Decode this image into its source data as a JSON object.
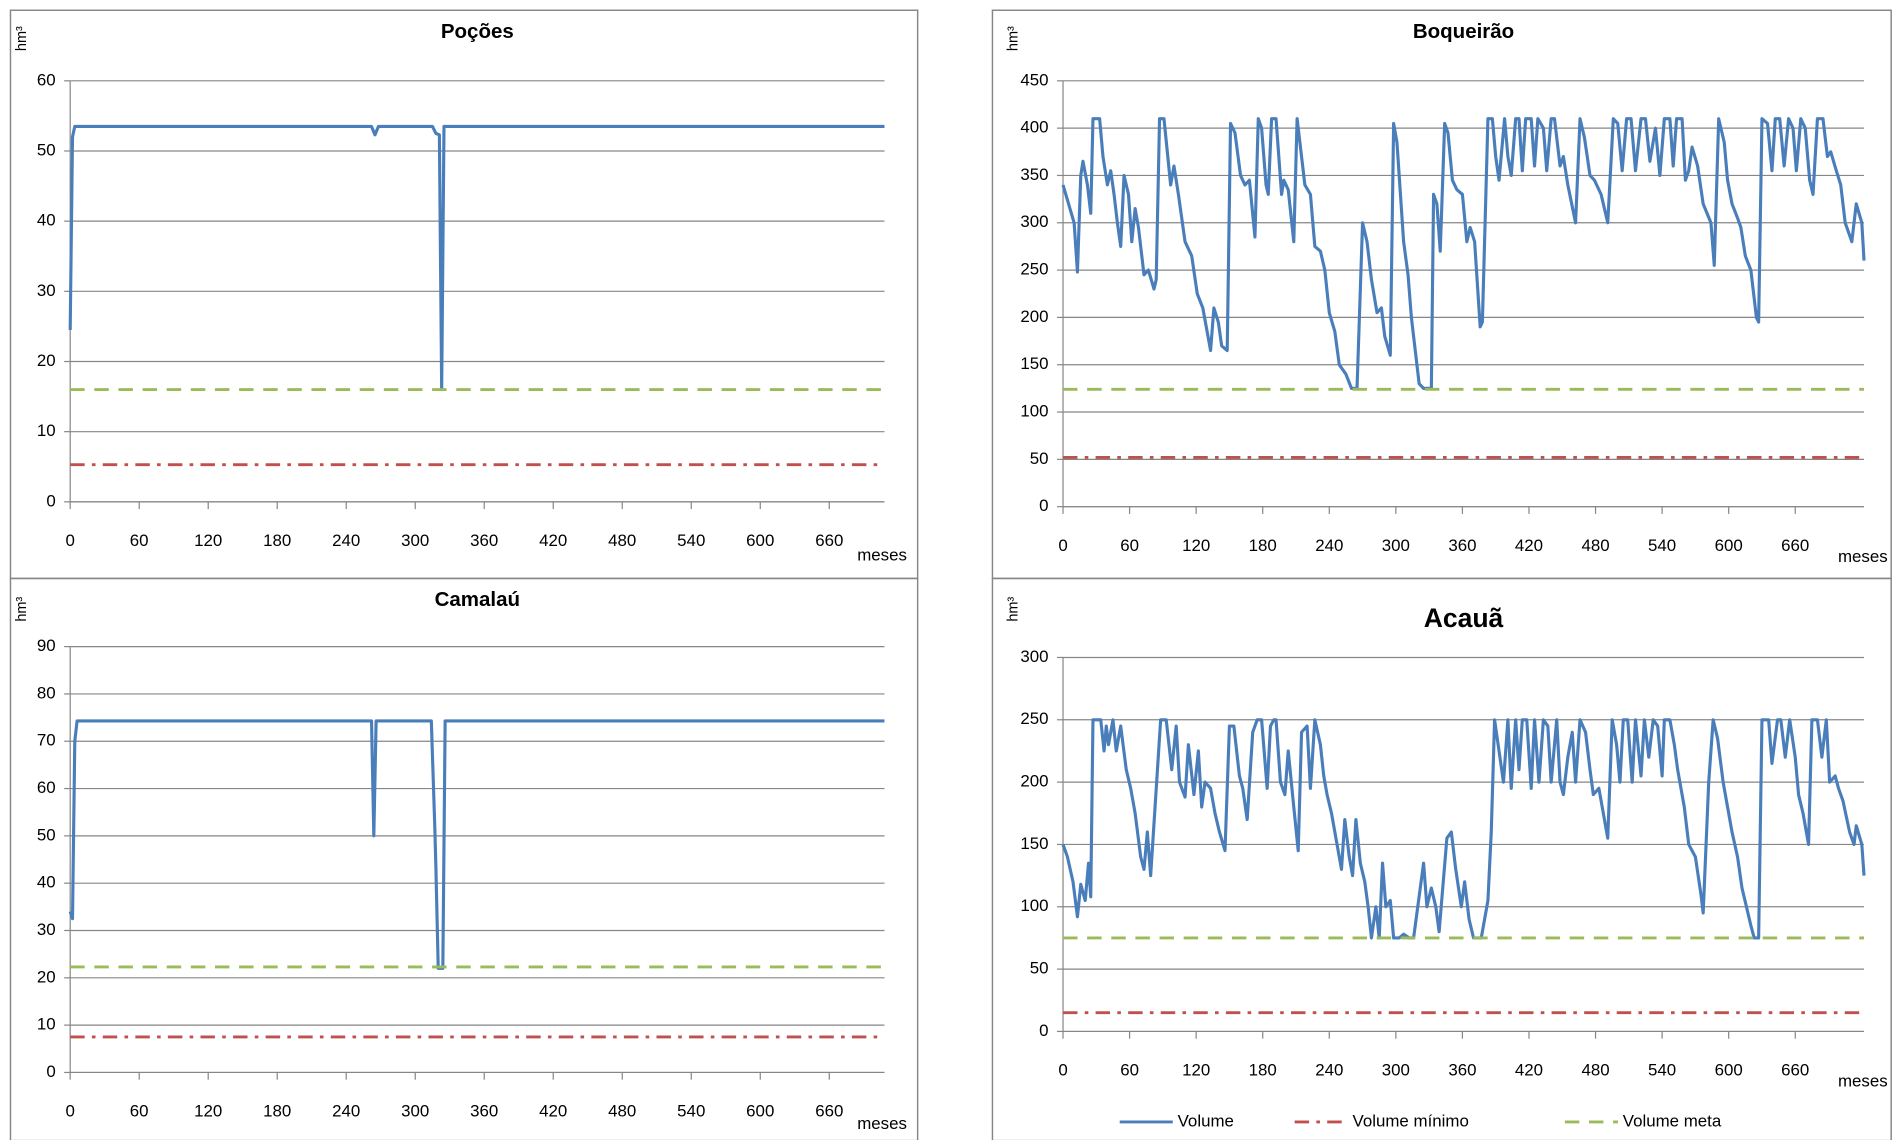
{
  "chart_data": [
    {
      "type": "line",
      "title": "Poções",
      "x_label": "meses",
      "y_label": "hm³",
      "xlim": [
        0,
        708
      ],
      "xticks": [
        0,
        60,
        120,
        180,
        240,
        300,
        360,
        420,
        480,
        540,
        600,
        660
      ],
      "ylim": [
        0,
        60
      ],
      "yticks": [
        0,
        10,
        20,
        30,
        40,
        50,
        60
      ],
      "grid": true,
      "series": [
        {
          "color": "#4a7ebb",
          "dash": "solid",
          "x": [
            0,
            2,
            4,
            262,
            265,
            268,
            315,
            318,
            321,
            323,
            325,
            708
          ],
          "values": [
            24.5,
            52,
            53.5,
            53.5,
            52.3,
            53.5,
            53.5,
            52.5,
            52.3,
            16,
            53.5,
            53.5
          ]
        },
        {
          "color": "#c0504d",
          "dash": "dashdot",
          "x": [
            0,
            708
          ],
          "values": [
            5.3,
            5.3
          ]
        },
        {
          "color": "#9bbb59",
          "dash": "dashed",
          "x": [
            0,
            708
          ],
          "values": [
            16,
            16
          ]
        }
      ]
    },
    {
      "type": "line",
      "title": "Camalaú",
      "x_label": "meses",
      "y_label": "hm³",
      "xlim": [
        0,
        708
      ],
      "xticks": [
        0,
        60,
        120,
        180,
        240,
        300,
        360,
        420,
        480,
        540,
        600,
        660
      ],
      "ylim": [
        0,
        90
      ],
      "yticks": [
        0,
        10,
        20,
        30,
        40,
        50,
        60,
        70,
        80,
        90
      ],
      "grid": true,
      "series": [
        {
          "color": "#4a7ebb",
          "dash": "solid",
          "x": [
            0,
            2,
            4,
            6,
            262,
            264,
            266,
            314,
            317,
            318,
            320,
            324,
            326,
            708
          ],
          "values": [
            34,
            32.5,
            70,
            74.3,
            74.3,
            50,
            74.3,
            74.3,
            52,
            43,
            22,
            22,
            74.3,
            74.3
          ]
        },
        {
          "color": "#c0504d",
          "dash": "dashdot",
          "x": [
            0,
            708
          ],
          "values": [
            7.5,
            7.5
          ]
        },
        {
          "color": "#9bbb59",
          "dash": "dashed",
          "x": [
            0,
            708
          ],
          "values": [
            22.3,
            22.3
          ]
        }
      ]
    },
    {
      "type": "line",
      "title": "Boqueirão",
      "x_label": "meses",
      "y_label": "hm³",
      "xlim": [
        0,
        722
      ],
      "xticks": [
        0,
        60,
        120,
        180,
        240,
        300,
        360,
        420,
        480,
        540,
        600,
        660
      ],
      "ylim": [
        0,
        450
      ],
      "yticks": [
        0,
        50,
        100,
        150,
        200,
        250,
        300,
        350,
        400,
        450
      ],
      "grid": true,
      "series": [
        {
          "color": "#4a7ebb",
          "dash": "solid",
          "x": [
            0,
            5,
            10,
            13,
            16,
            18,
            22,
            25,
            27,
            33,
            36,
            40,
            43,
            46,
            49,
            52,
            55,
            59,
            62,
            65,
            68,
            73,
            77,
            82,
            84,
            87,
            91,
            97,
            100,
            104,
            110,
            116,
            121,
            126,
            133,
            136,
            140,
            143,
            148,
            151,
            155,
            160,
            164,
            168,
            173,
            176,
            179,
            183,
            185,
            188,
            192,
            197,
            199,
            203,
            208,
            211,
            214,
            218,
            223,
            227,
            232,
            236,
            240,
            245,
            249,
            252,
            255,
            260,
            265,
            270,
            274,
            278,
            283,
            287,
            290,
            295,
            298,
            301,
            307,
            311,
            314,
            317,
            321,
            325,
            332,
            334,
            337,
            340,
            344,
            347,
            351,
            355,
            360,
            364,
            367,
            371,
            376,
            378,
            383,
            387,
            390,
            393,
            398,
            401,
            404,
            408,
            411,
            414,
            417,
            422,
            425,
            428,
            433,
            436,
            440,
            443,
            448,
            451,
            455,
            462,
            466,
            470,
            475,
            479,
            485,
            491,
            496,
            500,
            504,
            508,
            512,
            516,
            521,
            525,
            529,
            534,
            538,
            542,
            547,
            550,
            553,
            558,
            561,
            564,
            567,
            572,
            577,
            584,
            587,
            591,
            596,
            599,
            603,
            608,
            611,
            615,
            620,
            625,
            627,
            630,
            635,
            639,
            642,
            646,
            650,
            654,
            658,
            661,
            665,
            669,
            673,
            676,
            680,
            685,
            689,
            692,
            697,
            701,
            705,
            711,
            715,
            720,
            722
          ],
          "values": [
            340,
            320,
            300,
            248,
            350,
            365,
            340,
            310,
            410,
            410,
            370,
            340,
            355,
            330,
            300,
            275,
            350,
            330,
            280,
            315,
            295,
            245,
            250,
            230,
            240,
            410,
            410,
            340,
            360,
            330,
            280,
            265,
            225,
            210,
            165,
            210,
            195,
            170,
            165,
            405,
            395,
            350,
            340,
            345,
            285,
            410,
            400,
            340,
            330,
            410,
            410,
            330,
            345,
            335,
            280,
            410,
            380,
            340,
            330,
            275,
            270,
            250,
            205,
            185,
            150,
            145,
            140,
            125,
            125,
            300,
            280,
            240,
            205,
            210,
            180,
            160,
            405,
            385,
            280,
            245,
            200,
            170,
            130,
            125,
            125,
            330,
            320,
            270,
            405,
            395,
            345,
            335,
            330,
            280,
            295,
            280,
            190,
            195,
            410,
            410,
            370,
            345,
            410,
            370,
            350,
            410,
            410,
            355,
            410,
            410,
            360,
            410,
            400,
            355,
            410,
            410,
            360,
            370,
            340,
            300,
            410,
            390,
            350,
            345,
            330,
            300,
            410,
            405,
            355,
            410,
            410,
            355,
            410,
            410,
            365,
            400,
            350,
            410,
            410,
            360,
            410,
            410,
            345,
            355,
            380,
            360,
            320,
            300,
            255,
            410,
            385,
            345,
            320,
            305,
            295,
            265,
            250,
            200,
            195,
            410,
            405,
            355,
            410,
            410,
            360,
            410,
            400,
            355,
            410,
            400,
            345,
            330,
            410,
            410,
            370,
            375,
            355,
            340,
            300,
            280,
            320,
            300,
            260
          ]
        },
        {
          "color": "#c0504d",
          "dash": "dashdot",
          "x": [
            0,
            722
          ],
          "values": [
            52,
            52
          ]
        },
        {
          "color": "#9bbb59",
          "dash": "dashed",
          "x": [
            0,
            722
          ],
          "values": [
            124,
            124
          ]
        }
      ]
    },
    {
      "type": "line",
      "title": "Acauã",
      "x_label": "meses",
      "y_label": "hm³",
      "legend": "bottom",
      "xlim": [
        0,
        722
      ],
      "xticks": [
        0,
        60,
        120,
        180,
        240,
        300,
        360,
        420,
        480,
        540,
        600,
        660
      ],
      "ylim": [
        0,
        300
      ],
      "yticks": [
        0,
        50,
        100,
        150,
        200,
        250,
        300
      ],
      "grid": true,
      "series": [
        {
          "name": "Volume",
          "color": "#4a7ebb",
          "dash": "solid",
          "x": [
            0,
            4,
            9,
            13,
            16,
            20,
            23,
            25,
            27,
            34,
            37,
            39,
            41,
            45,
            48,
            52,
            57,
            61,
            65,
            70,
            73,
            76,
            79,
            88,
            93,
            98,
            102,
            105,
            110,
            113,
            118,
            122,
            125,
            128,
            133,
            137,
            141,
            146,
            150,
            154,
            159,
            162,
            166,
            171,
            175,
            179,
            184,
            187,
            190,
            192,
            196,
            200,
            203,
            208,
            212,
            215,
            220,
            223,
            227,
            232,
            235,
            238,
            242,
            247,
            251,
            254,
            258,
            261,
            264,
            268,
            272,
            275,
            278,
            282,
            285,
            288,
            291,
            295,
            298,
            303,
            307,
            312,
            316,
            325,
            328,
            332,
            336,
            339,
            346,
            350,
            354,
            359,
            362,
            366,
            370,
            377,
            383,
            386,
            389,
            393,
            397,
            401,
            404,
            408,
            411,
            414,
            418,
            422,
            425,
            429,
            433,
            437,
            440,
            445,
            448,
            451,
            455,
            459,
            462,
            466,
            471,
            475,
            478,
            483,
            487,
            491,
            495,
            499,
            502,
            505,
            509,
            513,
            516,
            521,
            524,
            528,
            532,
            536,
            540,
            542,
            547,
            551,
            554,
            560,
            564,
            570,
            575,
            577,
            582,
            586,
            590,
            595,
            599,
            603,
            608,
            612,
            616,
            620,
            623,
            627,
            630,
            636,
            639,
            644,
            647,
            651,
            655,
            660,
            663,
            667,
            672,
            675,
            680,
            684,
            688,
            691,
            696,
            699,
            703,
            709,
            713,
            715,
            720,
            722
          ],
          "values": [
            150,
            140,
            120,
            92,
            118,
            105,
            135,
            108,
            250,
            250,
            225,
            245,
            230,
            250,
            225,
            245,
            210,
            195,
            175,
            140,
            130,
            160,
            125,
            250,
            250,
            210,
            245,
            200,
            188,
            230,
            190,
            225,
            180,
            200,
            195,
            175,
            160,
            145,
            245,
            245,
            205,
            195,
            170,
            240,
            250,
            250,
            195,
            245,
            250,
            250,
            200,
            190,
            225,
            180,
            145,
            240,
            245,
            195,
            250,
            230,
            205,
            190,
            175,
            150,
            130,
            170,
            140,
            125,
            170,
            135,
            120,
            100,
            75,
            100,
            75,
            135,
            100,
            105,
            75,
            75,
            78,
            75,
            75,
            135,
            100,
            115,
            100,
            80,
            155,
            160,
            130,
            100,
            120,
            90,
            75,
            75,
            105,
            160,
            250,
            225,
            200,
            250,
            195,
            250,
            210,
            250,
            250,
            195,
            250,
            200,
            250,
            245,
            200,
            250,
            200,
            190,
            220,
            240,
            200,
            250,
            240,
            210,
            190,
            195,
            175,
            155,
            250,
            230,
            200,
            250,
            250,
            200,
            250,
            205,
            250,
            220,
            250,
            245,
            205,
            250,
            250,
            230,
            210,
            180,
            150,
            140,
            110,
            95,
            200,
            250,
            235,
            200,
            180,
            160,
            140,
            115,
            100,
            85,
            75,
            75,
            250,
            250,
            215,
            250,
            250,
            220,
            250,
            220,
            190,
            175,
            150,
            250,
            250,
            220,
            250,
            200,
            205,
            195,
            185,
            160,
            150,
            165,
            150,
            125
          ]
        },
        {
          "name": "Volume mínimo",
          "color": "#c0504d",
          "dash": "dashdot",
          "x": [
            0,
            722
          ],
          "values": [
            15,
            15
          ]
        },
        {
          "name": "Volume meta",
          "color": "#9bbb59",
          "dash": "dashed",
          "x": [
            0,
            722
          ],
          "values": [
            75,
            75
          ]
        }
      ]
    }
  ]
}
